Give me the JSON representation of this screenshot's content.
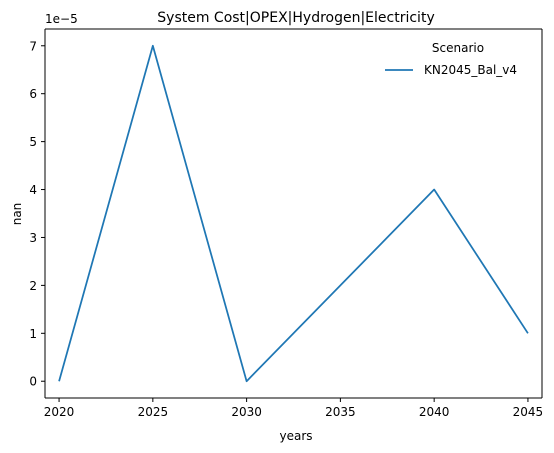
{
  "chart_data": {
    "type": "line",
    "title": "System Cost|OPEX|Hydrogen|Electricity",
    "xlabel": "years",
    "ylabel": "nan",
    "y_offset_label": "1e−5",
    "x_ticks": [
      2020,
      2025,
      2030,
      2035,
      2040,
      2045
    ],
    "y_ticks": [
      0,
      1,
      2,
      3,
      4,
      5,
      6,
      7
    ],
    "xlim": [
      2019.25,
      2045.75
    ],
    "ylim": [
      -0.35,
      7.35
    ],
    "grid": false,
    "legend": {
      "title": "Scenario",
      "placement": "top-right"
    },
    "series": [
      {
        "name": "KN2045_Bal_v4",
        "color": "#1f77b4",
        "x": [
          2020,
          2025,
          2030,
          2040,
          2045
        ],
        "y": [
          0,
          7,
          0,
          4,
          1
        ]
      }
    ]
  }
}
